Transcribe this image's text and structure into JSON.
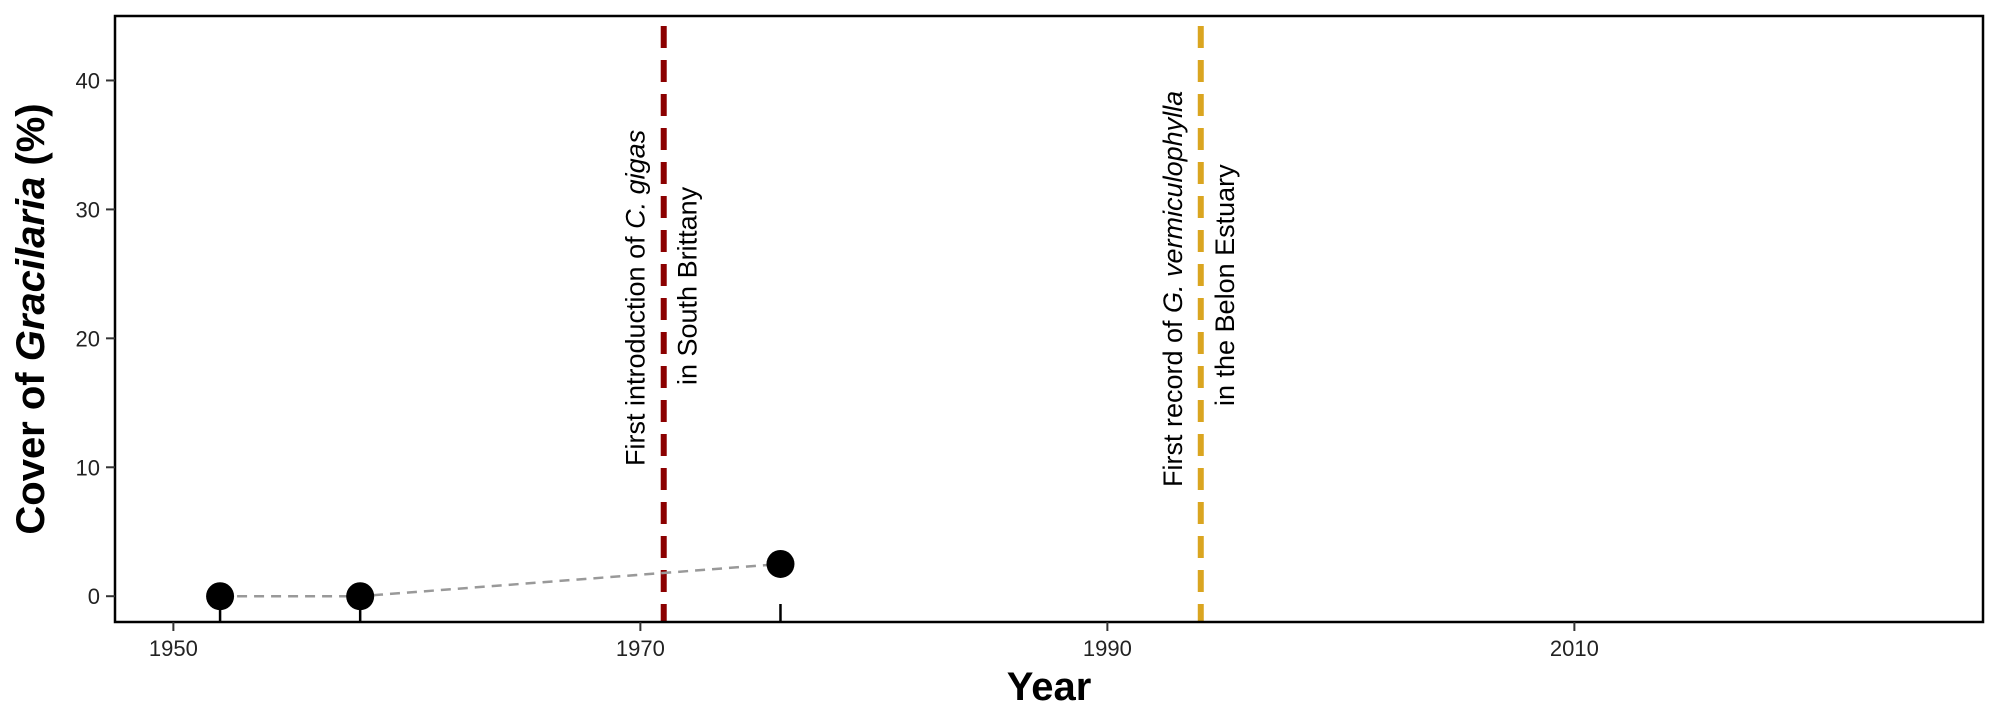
{
  "chart_data": {
    "type": "scatter",
    "xlabel": "Year",
    "ylabel_prefix": "Cover of ",
    "ylabel_italic": "Gracilaria",
    "ylabel_suffix": " (%)",
    "xlim": [
      1947.5,
      2027.5
    ],
    "ylim": [
      -2,
      45
    ],
    "x_ticks": [
      1950,
      1970,
      1990,
      2010
    ],
    "y_ticks": [
      0,
      10,
      20,
      30,
      40
    ],
    "grid": false,
    "trend_line": {
      "style": "dashed",
      "color": "#999999"
    },
    "points": [
      {
        "x": 1952,
        "y": 0
      },
      {
        "x": 1958,
        "y": 0
      },
      {
        "x": 1976,
        "y": 2.5
      }
    ],
    "rug_x": [
      1952,
      1958,
      1976
    ],
    "events": [
      {
        "x": 1971,
        "color": "#8B0000",
        "line1": [
          "First introduction of ",
          "C. gigas"
        ],
        "line2": "in South Brittany"
      },
      {
        "x": 1994,
        "color": "#DAA520",
        "line1": [
          "First record of ",
          "G. vermiculophylla"
        ],
        "line2": "in the Belon Estuary"
      }
    ]
  }
}
